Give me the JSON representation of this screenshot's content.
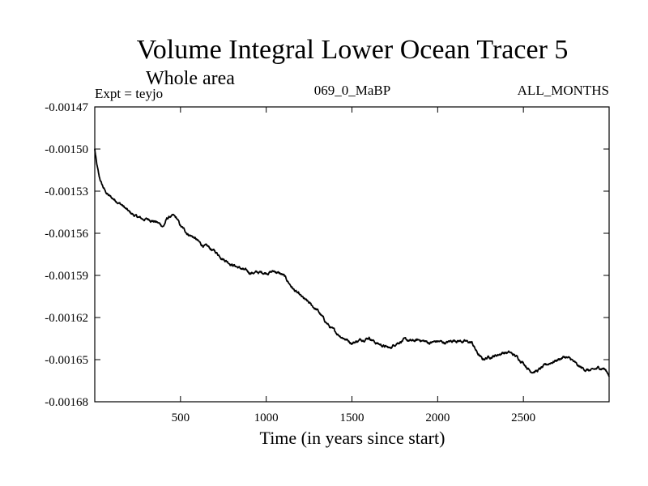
{
  "chart_data": {
    "type": "line",
    "title": "Volume Integral Lower Ocean Tracer 5",
    "subtitle": "Whole area",
    "expt_label": "Expt = teyjo",
    "run_label": "069_0_MaBP",
    "period_label": "ALL_MONTHS",
    "xlabel": "Time (in years since start)",
    "ylabel": "",
    "xlim": [
      0,
      3000
    ],
    "ylim": [
      -0.00168,
      -0.00147
    ],
    "x_ticks": [
      500,
      1000,
      1500,
      2000,
      2500
    ],
    "x_tick_labels": [
      "500",
      "1000",
      "1500",
      "2000",
      "2500"
    ],
    "y_ticks": [
      -0.00147,
      -0.0015,
      -0.00153,
      -0.00156,
      -0.00159,
      -0.00162,
      -0.00165,
      -0.00168
    ],
    "y_tick_labels": [
      "-0.00147",
      "-0.00150",
      "-0.00153",
      "-0.00156",
      "-0.00159",
      "-0.00162",
      "-0.00165",
      "-0.00168"
    ],
    "grid": false,
    "line_color": "#000000",
    "series": [
      {
        "name": "Volume Integral Lower Ocean Tracer 5",
        "x": [
          0,
          10,
          25,
          40,
          60,
          80,
          100,
          130,
          160,
          200,
          240,
          280,
          320,
          360,
          400,
          420,
          440,
          460,
          480,
          500,
          540,
          580,
          620,
          660,
          700,
          750,
          800,
          850,
          900,
          950,
          1000,
          1050,
          1100,
          1130,
          1160,
          1200,
          1250,
          1300,
          1340,
          1380,
          1420,
          1460,
          1500,
          1550,
          1600,
          1640,
          1680,
          1720,
          1760,
          1800,
          1850,
          1900,
          1950,
          2000,
          2050,
          2100,
          2150,
          2200,
          2230,
          2260,
          2300,
          2340,
          2380,
          2420,
          2460,
          2500,
          2540,
          2580,
          2620,
          2660,
          2700,
          2740,
          2780,
          2820,
          2860,
          2900,
          2940,
          2970,
          3000
        ],
        "y": [
          -0.0015,
          -0.00151,
          -0.00152,
          -0.001525,
          -0.00153,
          -0.001533,
          -0.001535,
          -0.001537,
          -0.00154,
          -0.001545,
          -0.001548,
          -0.00155,
          -0.00155,
          -0.001552,
          -0.001555,
          -0.00155,
          -0.001548,
          -0.001548,
          -0.00155,
          -0.001555,
          -0.00156,
          -0.001563,
          -0.001568,
          -0.00157,
          -0.001573,
          -0.001578,
          -0.001582,
          -0.001585,
          -0.001588,
          -0.001588,
          -0.001588,
          -0.001587,
          -0.00159,
          -0.001595,
          -0.0016,
          -0.001605,
          -0.00161,
          -0.001615,
          -0.001622,
          -0.001628,
          -0.001632,
          -0.001635,
          -0.001638,
          -0.001636,
          -0.001634,
          -0.001638,
          -0.00164,
          -0.001642,
          -0.001638,
          -0.001636,
          -0.001637,
          -0.001636,
          -0.001638,
          -0.001637,
          -0.001638,
          -0.001636,
          -0.001637,
          -0.001638,
          -0.001645,
          -0.00165,
          -0.001648,
          -0.001647,
          -0.001645,
          -0.001645,
          -0.001648,
          -0.001652,
          -0.001658,
          -0.001658,
          -0.001655,
          -0.001652,
          -0.00165,
          -0.001648,
          -0.00165,
          -0.001655,
          -0.001657,
          -0.001658,
          -0.001656,
          -0.001656,
          -0.001661
        ]
      }
    ]
  }
}
